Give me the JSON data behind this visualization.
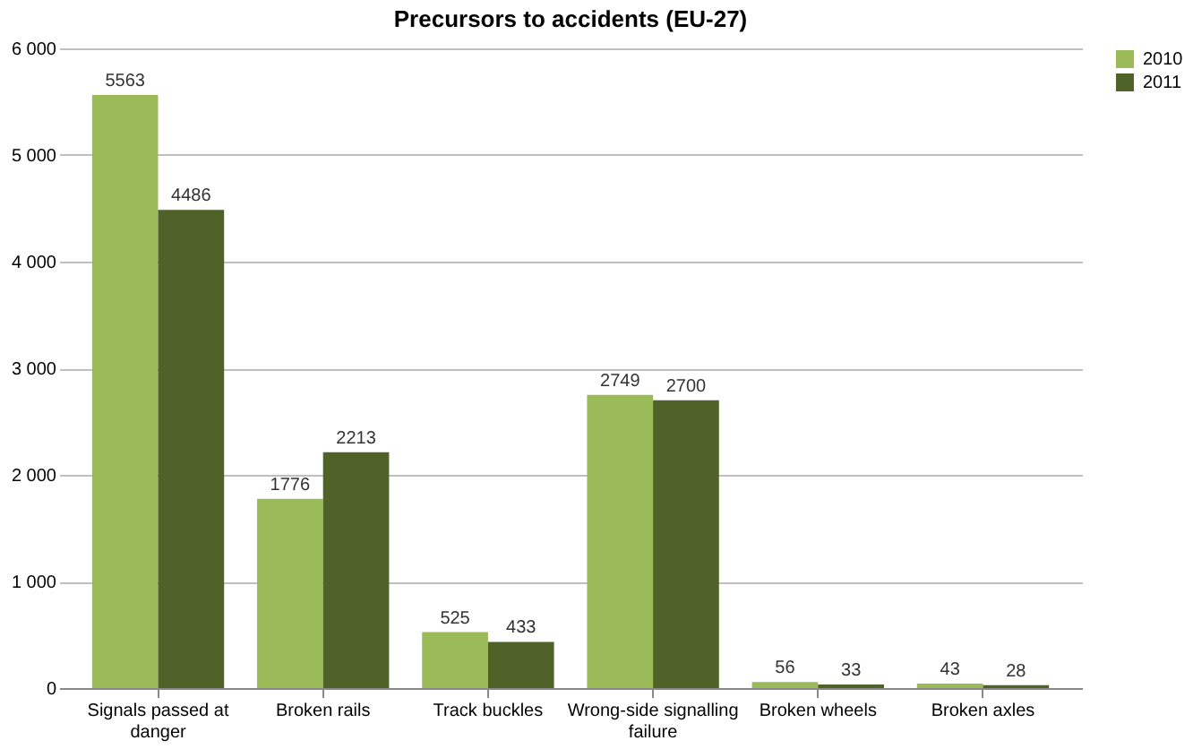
{
  "chart_data": {
    "type": "bar",
    "title": "Precursors to accidents (EU-27)",
    "categories": [
      "Signals passed at danger",
      "Broken rails",
      "Track buckles",
      "Wrong-side signalling failure",
      "Broken wheels",
      "Broken axles"
    ],
    "series": [
      {
        "name": "2010",
        "color": "#9bbb59",
        "values": [
          5563,
          1776,
          525,
          2749,
          56,
          43
        ]
      },
      {
        "name": "2011",
        "color": "#4f6228",
        "values": [
          4486,
          2213,
          433,
          2700,
          33,
          28
        ]
      }
    ],
    "ylim": [
      0,
      6000
    ],
    "yticks": [
      0,
      {
        "value": 1000,
        "label": "1 000"
      },
      {
        "value": 2000,
        "label": "2 000"
      },
      {
        "value": 3000,
        "label": "3 000"
      },
      {
        "value": 4000,
        "label": "4 000"
      },
      {
        "value": 5000,
        "label": "5 000"
      },
      {
        "value": 6000,
        "label": "6 000"
      }
    ],
    "grid": "y",
    "legend": "right",
    "data_labels": true
  }
}
